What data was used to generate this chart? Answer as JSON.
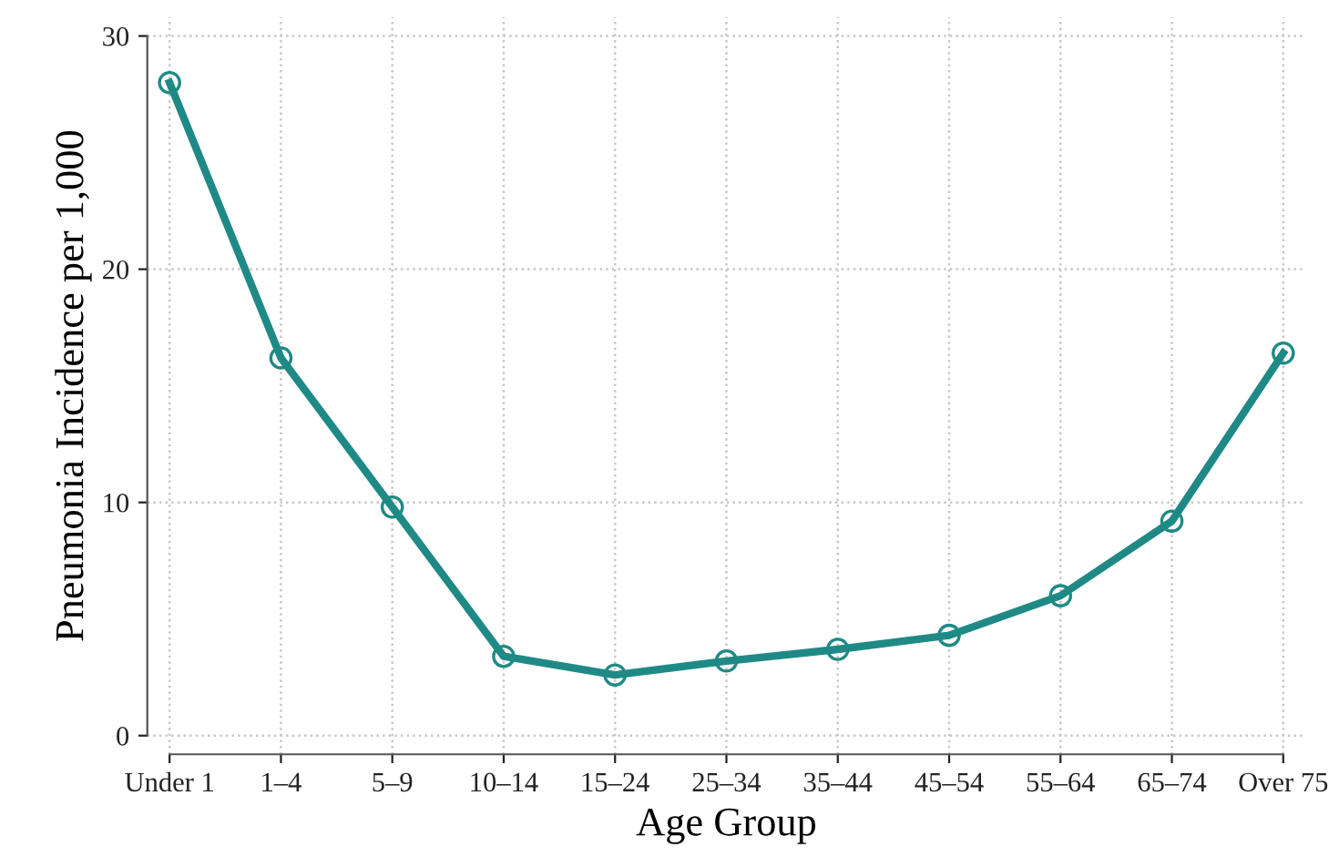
{
  "chart_data": {
    "type": "line",
    "xlabel": "Age Group",
    "ylabel": "Pneumonia Incidence per 1,000",
    "categories": [
      "Under 1",
      "1–4",
      "5–9",
      "10–14",
      "15–24",
      "25–34",
      "35–44",
      "45–54",
      "55–64",
      "65–74",
      "Over 75"
    ],
    "series": [
      {
        "color": "#1f8a85",
        "values": [
          28.0,
          16.2,
          9.8,
          3.4,
          2.6,
          3.2,
          3.7,
          4.3,
          6.0,
          9.2,
          16.4
        ]
      }
    ],
    "ylim": [
      -0.8,
      30.8
    ],
    "yticks": [
      0,
      10,
      20,
      30
    ],
    "grid": true,
    "marker": "circle",
    "line_style": "solid"
  }
}
